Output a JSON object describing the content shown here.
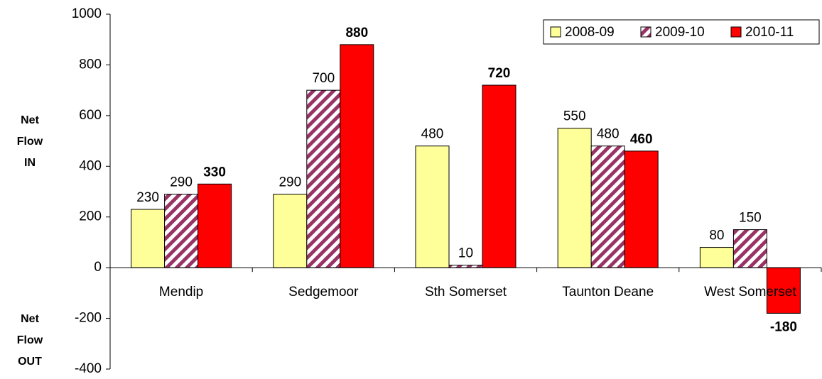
{
  "chart_data": {
    "type": "bar",
    "categories": [
      "Mendip",
      "Sedgemoor",
      "Sth Somerset",
      "Taunton Deane",
      "West Somerset"
    ],
    "series": [
      {
        "name": "2008-09",
        "color": "#ffff99",
        "values": [
          230,
          290,
          480,
          550,
          80
        ]
      },
      {
        "name": "2009-10",
        "color": "#993366",
        "pattern": "hatch",
        "values": [
          290,
          700,
          10,
          480,
          150
        ]
      },
      {
        "name": "2010-11",
        "color": "#ff0000",
        "bold_labels": true,
        "values": [
          330,
          880,
          720,
          460,
          -180
        ]
      }
    ],
    "ylim": [
      -400,
      1000
    ],
    "yticks": [
      -400,
      -200,
      0,
      200,
      400,
      600,
      800,
      1000
    ],
    "annotations": [
      [
        "Net",
        "Flow",
        "IN"
      ],
      [
        "Net",
        "Flow",
        "OUT"
      ]
    ],
    "legend": "top-right"
  }
}
